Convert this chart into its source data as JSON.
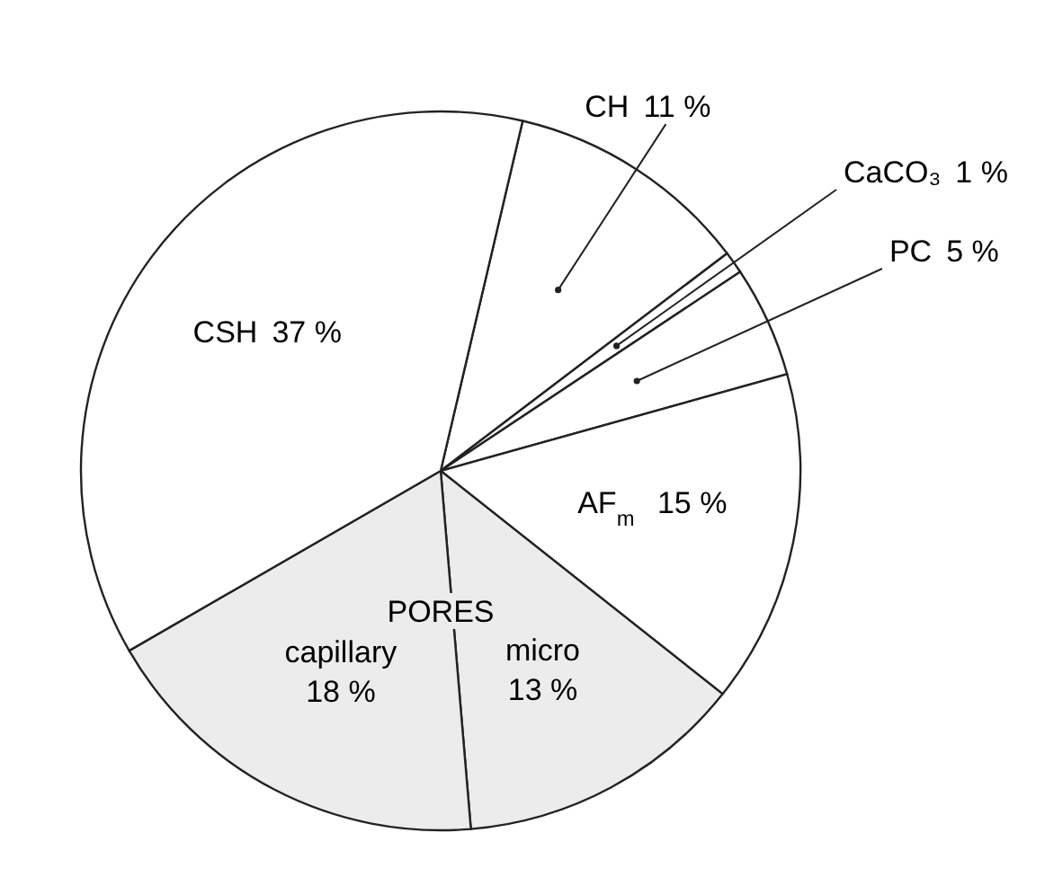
{
  "chart_data": {
    "type": "pie",
    "categories": [
      "CH",
      "CaCO₃",
      "PC",
      "AF$_{m}$",
      "micro",
      "capillary",
      "CSH"
    ],
    "values": [
      11,
      1,
      5,
      15,
      13,
      18,
      37
    ],
    "value_labels": [
      "11 %",
      "1 %",
      "5 %",
      "15 %",
      "13 %",
      "18 %",
      "37 %"
    ],
    "colors": [
      "#ffffff",
      "#ffffff",
      "#ffffff",
      "#ffffff",
      "#ececec",
      "#ececec",
      "#ffffff"
    ],
    "annotations": [
      "PORES"
    ]
  }
}
